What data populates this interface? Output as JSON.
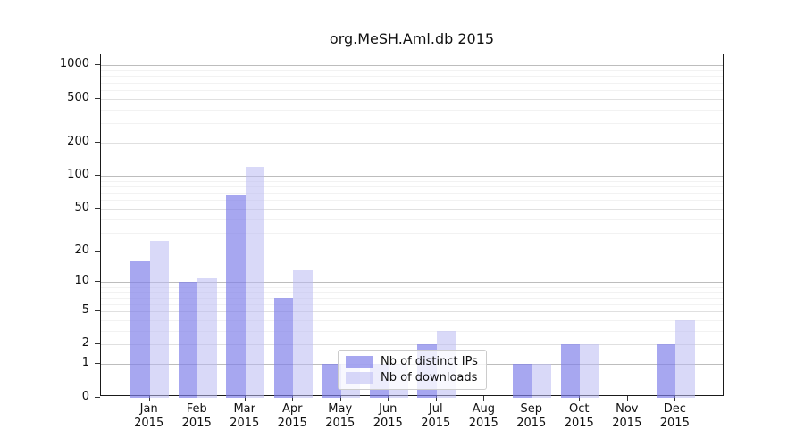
{
  "page": {
    "background": "#ffffff"
  },
  "chart_data": {
    "type": "bar",
    "title": "org.MeSH.Aml.db 2015",
    "categories": [
      {
        "month": "Jan",
        "year": "2015"
      },
      {
        "month": "Feb",
        "year": "2015"
      },
      {
        "month": "Mar",
        "year": "2015"
      },
      {
        "month": "Apr",
        "year": "2015"
      },
      {
        "month": "May",
        "year": "2015"
      },
      {
        "month": "Jun",
        "year": "2015"
      },
      {
        "month": "Jul",
        "year": "2015"
      },
      {
        "month": "Aug",
        "year": "2015"
      },
      {
        "month": "Sep",
        "year": "2015"
      },
      {
        "month": "Oct",
        "year": "2015"
      },
      {
        "month": "Nov",
        "year": "2015"
      },
      {
        "month": "Dec",
        "year": "2015"
      }
    ],
    "series": [
      {
        "name": "Nb of distinct IPs",
        "color": "#7d7de9",
        "alpha": 0.68,
        "values": [
          16,
          10,
          66,
          7,
          1,
          1,
          2,
          0,
          1,
          2,
          0,
          2
        ]
      },
      {
        "name": "Nb of downloads",
        "color": "#b9b9f2",
        "alpha": 0.55,
        "values": [
          25,
          11,
          120,
          13,
          1,
          1,
          3,
          0,
          1,
          2,
          0,
          4
        ]
      }
    ],
    "y_axis": {
      "ticks": [
        0,
        1,
        2,
        5,
        10,
        20,
        50,
        100,
        200,
        500,
        1000
      ],
      "scale": "log10(1+y)",
      "ylim": [
        0,
        1260
      ]
    },
    "xlabel": "",
    "ylabel": "",
    "grid": true,
    "legend_position": "lower center"
  }
}
